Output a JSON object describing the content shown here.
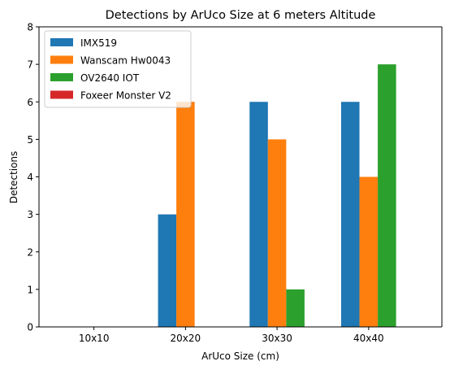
{
  "chart_data": {
    "type": "bar",
    "title": "Detections by ArUco Size at 6 meters Altitude",
    "xlabel": "ArUco Size (cm)",
    "ylabel": "Detections",
    "categories": [
      "10x10",
      "20x20",
      "30x30",
      "40x40"
    ],
    "ylim": [
      0,
      8
    ],
    "yticks": [
      0,
      1,
      2,
      3,
      4,
      5,
      6,
      7,
      8
    ],
    "grid": false,
    "legend_position": "top-left",
    "series": [
      {
        "name": "IMX519",
        "color": "#1f77b4",
        "values": [
          0,
          3,
          6,
          6
        ]
      },
      {
        "name": "Wanscam Hw0043",
        "color": "#ff7f0e",
        "values": [
          0,
          6,
          5,
          4
        ]
      },
      {
        "name": "OV2640 IOT",
        "color": "#2ca02c",
        "values": [
          0,
          0,
          1,
          7
        ]
      },
      {
        "name": "Foxeer Monster V2",
        "color": "#d62728",
        "values": [
          0,
          0,
          0,
          0
        ]
      }
    ]
  }
}
